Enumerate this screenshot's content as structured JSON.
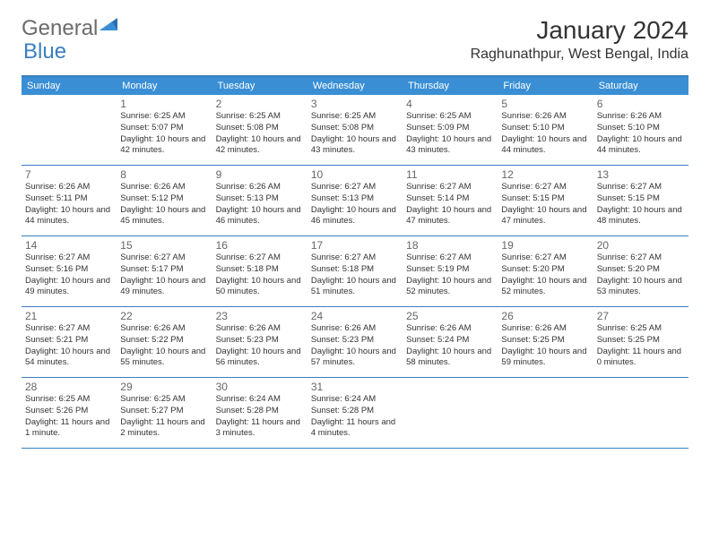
{
  "logo": {
    "text1": "General",
    "text2": "Blue"
  },
  "title": "January 2024",
  "location": "Raghunathpur, West Bengal, India",
  "colors": {
    "header_bg": "#3a8fd4",
    "border": "#3a7fbf",
    "logo_gray": "#6b6b6b",
    "logo_blue": "#3a7fbf",
    "text": "#333333",
    "day_number": "#666666",
    "background": "#ffffff"
  },
  "weekdays": [
    "Sunday",
    "Monday",
    "Tuesday",
    "Wednesday",
    "Thursday",
    "Friday",
    "Saturday"
  ],
  "weeks": [
    [
      null,
      {
        "n": "1",
        "sr": "6:25 AM",
        "ss": "5:07 PM",
        "dl": "10 hours and 42 minutes."
      },
      {
        "n": "2",
        "sr": "6:25 AM",
        "ss": "5:08 PM",
        "dl": "10 hours and 42 minutes."
      },
      {
        "n": "3",
        "sr": "6:25 AM",
        "ss": "5:08 PM",
        "dl": "10 hours and 43 minutes."
      },
      {
        "n": "4",
        "sr": "6:25 AM",
        "ss": "5:09 PM",
        "dl": "10 hours and 43 minutes."
      },
      {
        "n": "5",
        "sr": "6:26 AM",
        "ss": "5:10 PM",
        "dl": "10 hours and 44 minutes."
      },
      {
        "n": "6",
        "sr": "6:26 AM",
        "ss": "5:10 PM",
        "dl": "10 hours and 44 minutes."
      }
    ],
    [
      {
        "n": "7",
        "sr": "6:26 AM",
        "ss": "5:11 PM",
        "dl": "10 hours and 44 minutes."
      },
      {
        "n": "8",
        "sr": "6:26 AM",
        "ss": "5:12 PM",
        "dl": "10 hours and 45 minutes."
      },
      {
        "n": "9",
        "sr": "6:26 AM",
        "ss": "5:13 PM",
        "dl": "10 hours and 46 minutes."
      },
      {
        "n": "10",
        "sr": "6:27 AM",
        "ss": "5:13 PM",
        "dl": "10 hours and 46 minutes."
      },
      {
        "n": "11",
        "sr": "6:27 AM",
        "ss": "5:14 PM",
        "dl": "10 hours and 47 minutes."
      },
      {
        "n": "12",
        "sr": "6:27 AM",
        "ss": "5:15 PM",
        "dl": "10 hours and 47 minutes."
      },
      {
        "n": "13",
        "sr": "6:27 AM",
        "ss": "5:15 PM",
        "dl": "10 hours and 48 minutes."
      }
    ],
    [
      {
        "n": "14",
        "sr": "6:27 AM",
        "ss": "5:16 PM",
        "dl": "10 hours and 49 minutes."
      },
      {
        "n": "15",
        "sr": "6:27 AM",
        "ss": "5:17 PM",
        "dl": "10 hours and 49 minutes."
      },
      {
        "n": "16",
        "sr": "6:27 AM",
        "ss": "5:18 PM",
        "dl": "10 hours and 50 minutes."
      },
      {
        "n": "17",
        "sr": "6:27 AM",
        "ss": "5:18 PM",
        "dl": "10 hours and 51 minutes."
      },
      {
        "n": "18",
        "sr": "6:27 AM",
        "ss": "5:19 PM",
        "dl": "10 hours and 52 minutes."
      },
      {
        "n": "19",
        "sr": "6:27 AM",
        "ss": "5:20 PM",
        "dl": "10 hours and 52 minutes."
      },
      {
        "n": "20",
        "sr": "6:27 AM",
        "ss": "5:20 PM",
        "dl": "10 hours and 53 minutes."
      }
    ],
    [
      {
        "n": "21",
        "sr": "6:27 AM",
        "ss": "5:21 PM",
        "dl": "10 hours and 54 minutes."
      },
      {
        "n": "22",
        "sr": "6:26 AM",
        "ss": "5:22 PM",
        "dl": "10 hours and 55 minutes."
      },
      {
        "n": "23",
        "sr": "6:26 AM",
        "ss": "5:23 PM",
        "dl": "10 hours and 56 minutes."
      },
      {
        "n": "24",
        "sr": "6:26 AM",
        "ss": "5:23 PM",
        "dl": "10 hours and 57 minutes."
      },
      {
        "n": "25",
        "sr": "6:26 AM",
        "ss": "5:24 PM",
        "dl": "10 hours and 58 minutes."
      },
      {
        "n": "26",
        "sr": "6:26 AM",
        "ss": "5:25 PM",
        "dl": "10 hours and 59 minutes."
      },
      {
        "n": "27",
        "sr": "6:25 AM",
        "ss": "5:25 PM",
        "dl": "11 hours and 0 minutes."
      }
    ],
    [
      {
        "n": "28",
        "sr": "6:25 AM",
        "ss": "5:26 PM",
        "dl": "11 hours and 1 minute."
      },
      {
        "n": "29",
        "sr": "6:25 AM",
        "ss": "5:27 PM",
        "dl": "11 hours and 2 minutes."
      },
      {
        "n": "30",
        "sr": "6:24 AM",
        "ss": "5:28 PM",
        "dl": "11 hours and 3 minutes."
      },
      {
        "n": "31",
        "sr": "6:24 AM",
        "ss": "5:28 PM",
        "dl": "11 hours and 4 minutes."
      },
      null,
      null,
      null
    ]
  ],
  "labels": {
    "sunrise": "Sunrise:",
    "sunset": "Sunset:",
    "daylight": "Daylight:"
  }
}
